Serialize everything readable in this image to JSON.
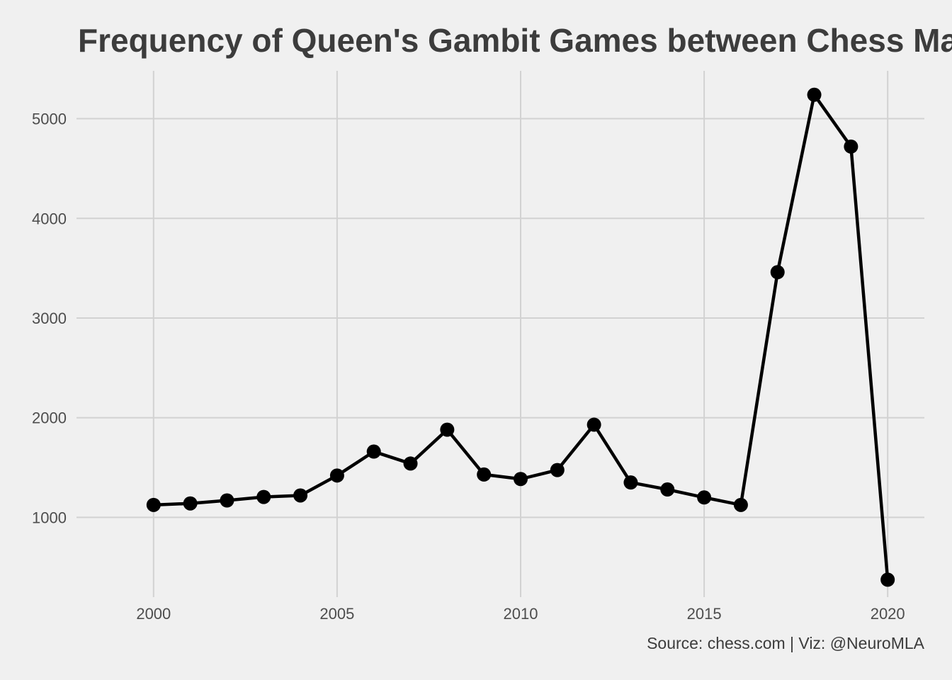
{
  "chart_data": {
    "type": "line",
    "title": "Frequency of Queen's Gambit Games between Chess Masters",
    "xlabel": "",
    "ylabel": "",
    "caption": "Source: chess.com | Viz: @NeuroMLA",
    "x": [
      2000,
      2001,
      2002,
      2003,
      2004,
      2005,
      2006,
      2007,
      2008,
      2009,
      2010,
      2011,
      2012,
      2013,
      2014,
      2015,
      2016,
      2017,
      2018,
      2019,
      2020
    ],
    "series": [
      {
        "values": [
          1125,
          1140,
          1170,
          1205,
          1220,
          1420,
          1660,
          1540,
          1880,
          1430,
          1385,
          1475,
          1930,
          1350,
          1280,
          1200,
          1125,
          3460,
          5240,
          4720,
          375
        ]
      }
    ],
    "xlim": [
      1997.9,
      2021.0
    ],
    "ylim": [
      200,
      5480
    ],
    "x_ticks": [
      2000,
      2005,
      2010,
      2015,
      2020
    ],
    "y_ticks": [
      1000,
      2000,
      3000,
      4000,
      5000
    ],
    "x_tick_labels": [
      "2000",
      "2005",
      "2010",
      "2015",
      "2020"
    ],
    "y_tick_labels": [
      "1000",
      "2000",
      "3000",
      "4000",
      "5000"
    ],
    "grid": true,
    "legend": "none",
    "colors": {
      "background": "#f0f0f0",
      "grid": "#d2d2d2",
      "line": "#000000",
      "point": "#000000",
      "title": "#3c3c3c",
      "tick_label": "#4d4d4d"
    }
  }
}
